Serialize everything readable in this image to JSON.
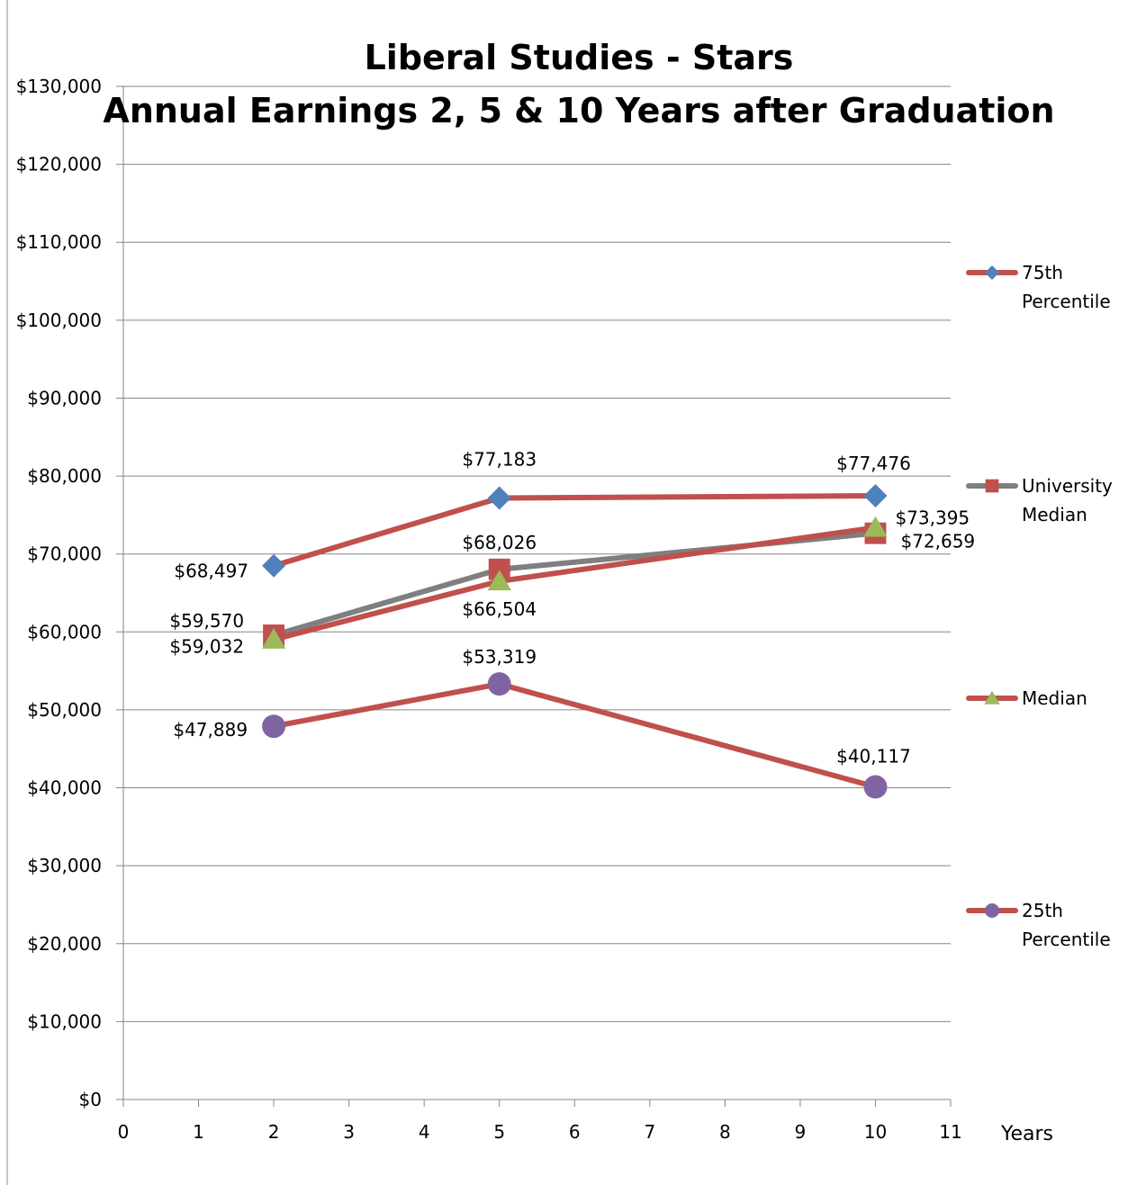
{
  "chart_data": {
    "type": "line",
    "title_line1": "Liberal Studies - Stars",
    "title_line2": "Annual Earnings 2, 5 & 10 Years after Graduation",
    "xlabel": "Years",
    "ylabel": "",
    "xlim": [
      0,
      11
    ],
    "ylim": [
      0,
      130000
    ],
    "x_ticks": [
      "0",
      "1",
      "2",
      "3",
      "4",
      "5",
      "6",
      "7",
      "8",
      "9",
      "10",
      "11"
    ],
    "y_ticks": [
      "$0",
      "$10,000",
      "$20,000",
      "$30,000",
      "$40,000",
      "$50,000",
      "$60,000",
      "$70,000",
      "$80,000",
      "$90,000",
      "$100,000",
      "$110,000",
      "$120,000",
      "$130,000"
    ],
    "grid": true,
    "legend_position": "right",
    "series": [
      {
        "name": "75th Percentile",
        "legend_lines": [
          "75th",
          "Percentile"
        ],
        "x": [
          2,
          5,
          10
        ],
        "values": [
          68497,
          77183,
          77476
        ],
        "labels": [
          "$68,497",
          "$77,183",
          "$77,476"
        ],
        "marker": "diamond",
        "line_color": "#c0504d",
        "marker_color": "#4f81bd"
      },
      {
        "name": "University Median",
        "legend_lines": [
          "University",
          "Median"
        ],
        "x": [
          2,
          5,
          10
        ],
        "values": [
          59570,
          68026,
          72659
        ],
        "labels": [
          "$59,570",
          "$68,026",
          "$72,659"
        ],
        "marker": "square",
        "line_color": "#7f7f7f",
        "marker_color": "#c0504d"
      },
      {
        "name": "Median",
        "legend_lines": [
          "Median"
        ],
        "x": [
          2,
          5,
          10
        ],
        "values": [
          59032,
          66504,
          73395
        ],
        "labels": [
          "$59,032",
          "$66,504",
          "$73,395"
        ],
        "marker": "triangle",
        "line_color": "#c0504d",
        "marker_color": "#9bbb59"
      },
      {
        "name": "25th Percentile",
        "legend_lines": [
          "25th",
          "Percentile"
        ],
        "x": [
          2,
          5,
          10
        ],
        "values": [
          47889,
          53319,
          40117
        ],
        "labels": [
          "$47,889",
          "$53,319",
          "$40,117"
        ],
        "marker": "circle",
        "line_color": "#c0504d",
        "marker_color": "#8064a2"
      }
    ]
  }
}
